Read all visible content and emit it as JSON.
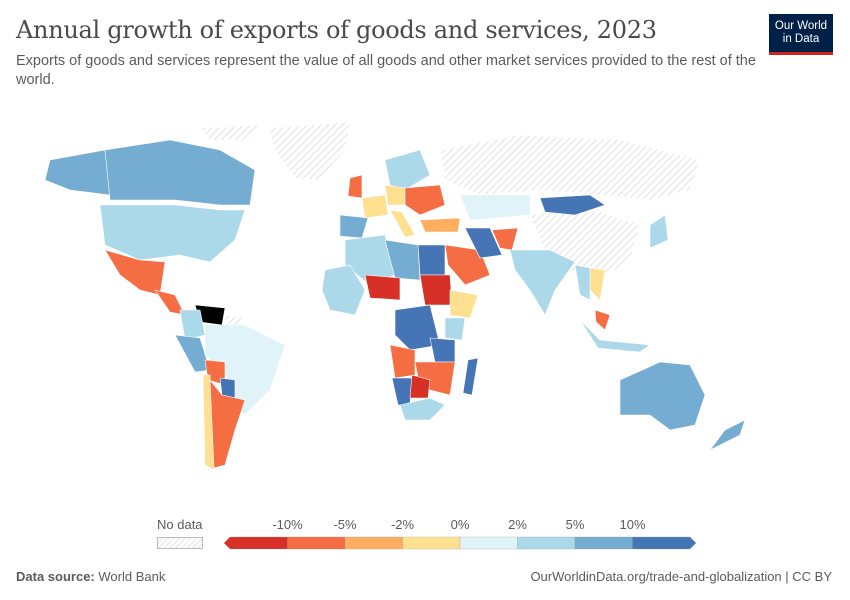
{
  "header": {
    "title": "Annual growth of exports of goods and services, 2023",
    "subtitle": "Exports of goods and services represent the value of all goods and other market services provided to the rest of the world.",
    "logo_line1": "Our World",
    "logo_line2": "in Data"
  },
  "legend": {
    "no_data_label": "No data",
    "ticks": [
      "-10%",
      "-5%",
      "-2%",
      "0%",
      "2%",
      "5%",
      "10%"
    ],
    "colors": [
      "#d73027",
      "#f46d43",
      "#fdae61",
      "#fee090",
      "#e0f3f8",
      "#abd9e9",
      "#74add1",
      "#4575b4"
    ],
    "no_data_color": "#e2e2e2"
  },
  "map_data": {
    "bins": {
      "canada": 6,
      "alaska": 6,
      "usa": 5,
      "mexico": 1,
      "central_america": 1,
      "colombia": 5,
      "venezuela": 8,
      "peru": 6,
      "brazil": 4,
      "bolivia": 1,
      "paraguay": 7,
      "argentina": 1,
      "chile": 3,
      "uk": 1,
      "france": 3,
      "iberia": 6,
      "germany": 3,
      "scandinavia": 5,
      "eastern_europe": 1,
      "italy": 3,
      "turkey": 2,
      "algeria": 5,
      "libya": 6,
      "egypt": 7,
      "west_africa": 5,
      "mali_niger": 0,
      "sudan": 0,
      "ethiopia": 3,
      "kenya": 5,
      "drc": 7,
      "angola": 1,
      "namibia": 7,
      "botswana": 0,
      "zambia_moz": 1,
      "tanzania": 7,
      "south_africa": 5,
      "madagascar": 7,
      "saudi": 1,
      "iran": 7,
      "afghanistan": 1,
      "kazakhstan": 4,
      "mongolia": 7,
      "india": 5,
      "japan": 5,
      "se_asia": 5,
      "thailand": 3,
      "malaysia": 1,
      "indonesia": 5,
      "australia": 6,
      "new_zealand": 6
    }
  },
  "footer": {
    "source_label": "Data source:",
    "source_value": "World Bank",
    "link": "OurWorldinData.org/trade-and-globalization | CC BY"
  }
}
